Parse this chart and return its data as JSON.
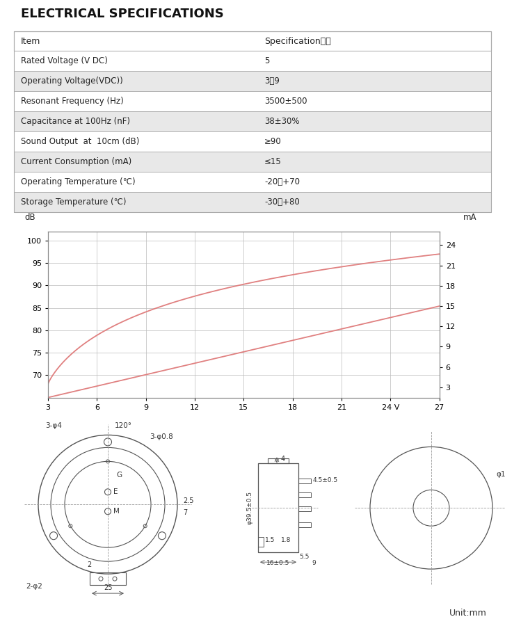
{
  "title": "ELECTRICAL SPECIFICATIONS",
  "table_headers": [
    "Item",
    "Specification規格"
  ],
  "table_rows": [
    [
      "Rated Voltage (V DC)",
      "5"
    ],
    [
      "Operating Voltage(VDC))",
      "3～9"
    ],
    [
      "Resonant Frequency (Hz)",
      "3500±500"
    ],
    [
      "Capacitance at 100Hz (nF)",
      "38±30%"
    ],
    [
      "Sound Output  at  10cm (dB)",
      "≥90"
    ],
    [
      "Current Consumption (mA)",
      "≤15"
    ],
    [
      "Operating Temperature (℃)",
      "-20～+70"
    ],
    [
      "Storage Temperature (℃)",
      "-30～+80"
    ]
  ],
  "row_colors": [
    "#ffffff",
    "#e8e8e8",
    "#ffffff",
    "#e8e8e8",
    "#ffffff",
    "#e8e8e8",
    "#ffffff",
    "#e8e8e8"
  ],
  "graph_db_yticks": [
    70,
    75,
    80,
    85,
    90,
    95,
    100
  ],
  "graph_ma_yticks": [
    3,
    6,
    9,
    12,
    15,
    18,
    21,
    24
  ],
  "graph_xticks": [
    3,
    6,
    9,
    12,
    15,
    18,
    21,
    24,
    27
  ],
  "graph_xlim": [
    3,
    27
  ],
  "graph_db_ylim": [
    65,
    102
  ],
  "graph_ma_ylim": [
    1.5,
    26
  ],
  "line_color": "#e08080",
  "grid_color": "#bbbbbb",
  "background_color": "#ffffff"
}
